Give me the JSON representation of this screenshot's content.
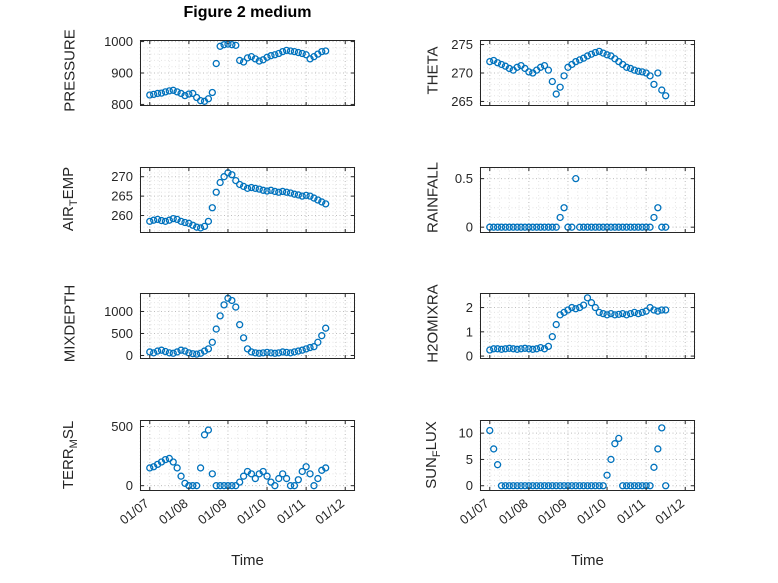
{
  "title": "Figure 2 medium",
  "chart_data": {
    "type": "scatter",
    "layout": "4x2-grid",
    "xlabel": "Time",
    "x_unit": "days since 01/07",
    "xlim": [
      -0.25,
      5.25
    ],
    "xticks": [
      0,
      1,
      2,
      3,
      4,
      5
    ],
    "xticklabels": [
      "01/07",
      "01/08",
      "01/09",
      "01/10",
      "01/11",
      "01/12"
    ],
    "marker": "open-circle",
    "color": "#0072BD",
    "grid": "dotted major and minor",
    "x": [
      0,
      0.1,
      0.2,
      0.3,
      0.4,
      0.5,
      0.6,
      0.7,
      0.8,
      0.9,
      1,
      1.1,
      1.2,
      1.3,
      1.4,
      1.5,
      1.6,
      1.7,
      1.8,
      1.9,
      2,
      2.1,
      2.2,
      2.3,
      2.4,
      2.5,
      2.6,
      2.7,
      2.8,
      2.9,
      3,
      3.1,
      3.2,
      3.3,
      3.4,
      3.5,
      3.6,
      3.7,
      3.8,
      3.9,
      4,
      4.1,
      4.2,
      4.3,
      4.4,
      4.5
    ],
    "subplots": [
      {
        "name": "PRESSURE",
        "label_parts": [
          {
            "text": "PRESSURE"
          }
        ],
        "yticks": [
          800,
          900,
          1000
        ],
        "ylim": [
          795,
          1005
        ],
        "y": [
          830,
          832,
          835,
          836,
          840,
          843,
          845,
          840,
          835,
          828,
          833,
          835,
          822,
          812,
          810,
          818,
          838,
          930,
          985,
          990,
          992,
          990,
          988,
          940,
          935,
          948,
          952,
          945,
          938,
          942,
          950,
          955,
          958,
          962,
          968,
          972,
          970,
          968,
          965,
          962,
          958,
          945,
          952,
          960,
          968,
          970
        ]
      },
      {
        "name": "THETA",
        "label_parts": [
          {
            "text": "THETA"
          }
        ],
        "yticks": [
          265,
          270,
          275
        ],
        "ylim": [
          264.2,
          275.8
        ],
        "y": [
          272,
          272.2,
          271.8,
          271.5,
          271.2,
          270.8,
          270.5,
          271,
          271.3,
          270.8,
          270.2,
          270,
          270.5,
          271,
          271.3,
          270.5,
          268.5,
          266.3,
          267.5,
          269.5,
          271,
          271.5,
          272,
          272.3,
          272.6,
          273,
          273.3,
          273.6,
          273.8,
          273.5,
          273.2,
          273,
          272.5,
          272,
          271.5,
          271,
          270.8,
          270.5,
          270.3,
          270.2,
          270,
          269.5,
          268,
          270,
          267,
          266
        ]
      },
      {
        "name": "AIR_TEMP",
        "label_parts": [
          {
            "text": "AIR"
          },
          {
            "text": "T",
            "sub": true
          },
          {
            "text": "EMP"
          }
        ],
        "yticks": [
          260,
          265,
          270
        ],
        "ylim": [
          255.5,
          272.5
        ],
        "y": [
          258.5,
          258.8,
          259,
          258.7,
          258.5,
          258.8,
          259.2,
          259,
          258.5,
          258.2,
          258,
          257.5,
          257,
          256.8,
          257.2,
          258.5,
          262,
          266,
          268.5,
          270,
          271,
          270.5,
          269,
          268,
          267.5,
          267,
          267.2,
          267,
          266.8,
          266.5,
          266.3,
          266.5,
          266.2,
          266,
          266.2,
          266,
          265.8,
          265.5,
          265.3,
          265,
          265.2,
          265,
          264.5,
          264,
          263.5,
          263
        ]
      },
      {
        "name": "RAINFALL",
        "label_parts": [
          {
            "text": "RAINFALL"
          }
        ],
        "yticks": [
          0,
          0.5
        ],
        "ylim": [
          -0.06,
          0.62
        ],
        "y": [
          0,
          0,
          0,
          0,
          0,
          0,
          0,
          0,
          0,
          0,
          0,
          0,
          0,
          0,
          0,
          0,
          0,
          0,
          0.1,
          0.2,
          0,
          0,
          0.5,
          0,
          0,
          0,
          0,
          0,
          0,
          0,
          0,
          0,
          0,
          0,
          0,
          0,
          0,
          0,
          0,
          0,
          0,
          0,
          0.1,
          0.2,
          0,
          0
        ]
      },
      {
        "name": "MIXDEPTH",
        "label_parts": [
          {
            "text": "MIXDEPTH"
          }
        ],
        "yticks": [
          0,
          500,
          1000
        ],
        "ylim": [
          -80,
          1420
        ],
        "y": [
          80,
          60,
          100,
          120,
          90,
          60,
          50,
          80,
          120,
          100,
          60,
          40,
          30,
          50,
          100,
          150,
          300,
          600,
          900,
          1150,
          1300,
          1250,
          1100,
          700,
          400,
          150,
          80,
          60,
          50,
          60,
          70,
          60,
          50,
          60,
          80,
          70,
          60,
          80,
          100,
          120,
          150,
          180,
          200,
          300,
          450,
          620
        ]
      },
      {
        "name": "H2OMIXRA",
        "label_parts": [
          {
            "text": "H2OMIXRA"
          }
        ],
        "yticks": [
          0,
          1,
          2
        ],
        "ylim": [
          -0.12,
          2.6
        ],
        "y": [
          0.25,
          0.3,
          0.3,
          0.28,
          0.3,
          0.32,
          0.3,
          0.28,
          0.3,
          0.32,
          0.3,
          0.28,
          0.3,
          0.35,
          0.3,
          0.4,
          0.8,
          1.3,
          1.7,
          1.8,
          1.9,
          2,
          1.95,
          2,
          2.1,
          2.4,
          2.2,
          2,
          1.8,
          1.75,
          1.7,
          1.75,
          1.7,
          1.72,
          1.75,
          1.7,
          1.75,
          1.8,
          1.75,
          1.8,
          1.85,
          2,
          1.9,
          1.85,
          1.9,
          1.9
        ]
      },
      {
        "name": "TERR_MSL",
        "label_parts": [
          {
            "text": "TERR"
          },
          {
            "text": "M",
            "sub": true
          },
          {
            "text": "SL"
          }
        ],
        "yticks": [
          0,
          500
        ],
        "ylim": [
          -45,
          555
        ],
        "y": [
          150,
          160,
          180,
          200,
          220,
          230,
          200,
          150,
          80,
          20,
          0,
          0,
          0,
          150,
          430,
          470,
          100,
          0,
          0,
          0,
          0,
          0,
          0,
          30,
          80,
          120,
          100,
          60,
          100,
          120,
          80,
          30,
          0,
          60,
          100,
          60,
          0,
          0,
          50,
          120,
          160,
          100,
          0,
          60,
          130,
          150
        ]
      },
      {
        "name": "SUN_FLUX",
        "label_parts": [
          {
            "text": "SUN"
          },
          {
            "text": "F",
            "sub": true
          },
          {
            "text": "LUX"
          }
        ],
        "yticks": [
          0,
          5,
          10
        ],
        "ylim": [
          -1,
          12.5
        ],
        "y": [
          10.5,
          7,
          4,
          0,
          0,
          0,
          0,
          0,
          0,
          0,
          0,
          0,
          0,
          0,
          0,
          0,
          0,
          0,
          0,
          0,
          0,
          0,
          0,
          0,
          0,
          0,
          0,
          0,
          0,
          0,
          2,
          5,
          8,
          9,
          0,
          0,
          0,
          0,
          0,
          0,
          0,
          0,
          3.5,
          7,
          11,
          0
        ]
      }
    ]
  }
}
